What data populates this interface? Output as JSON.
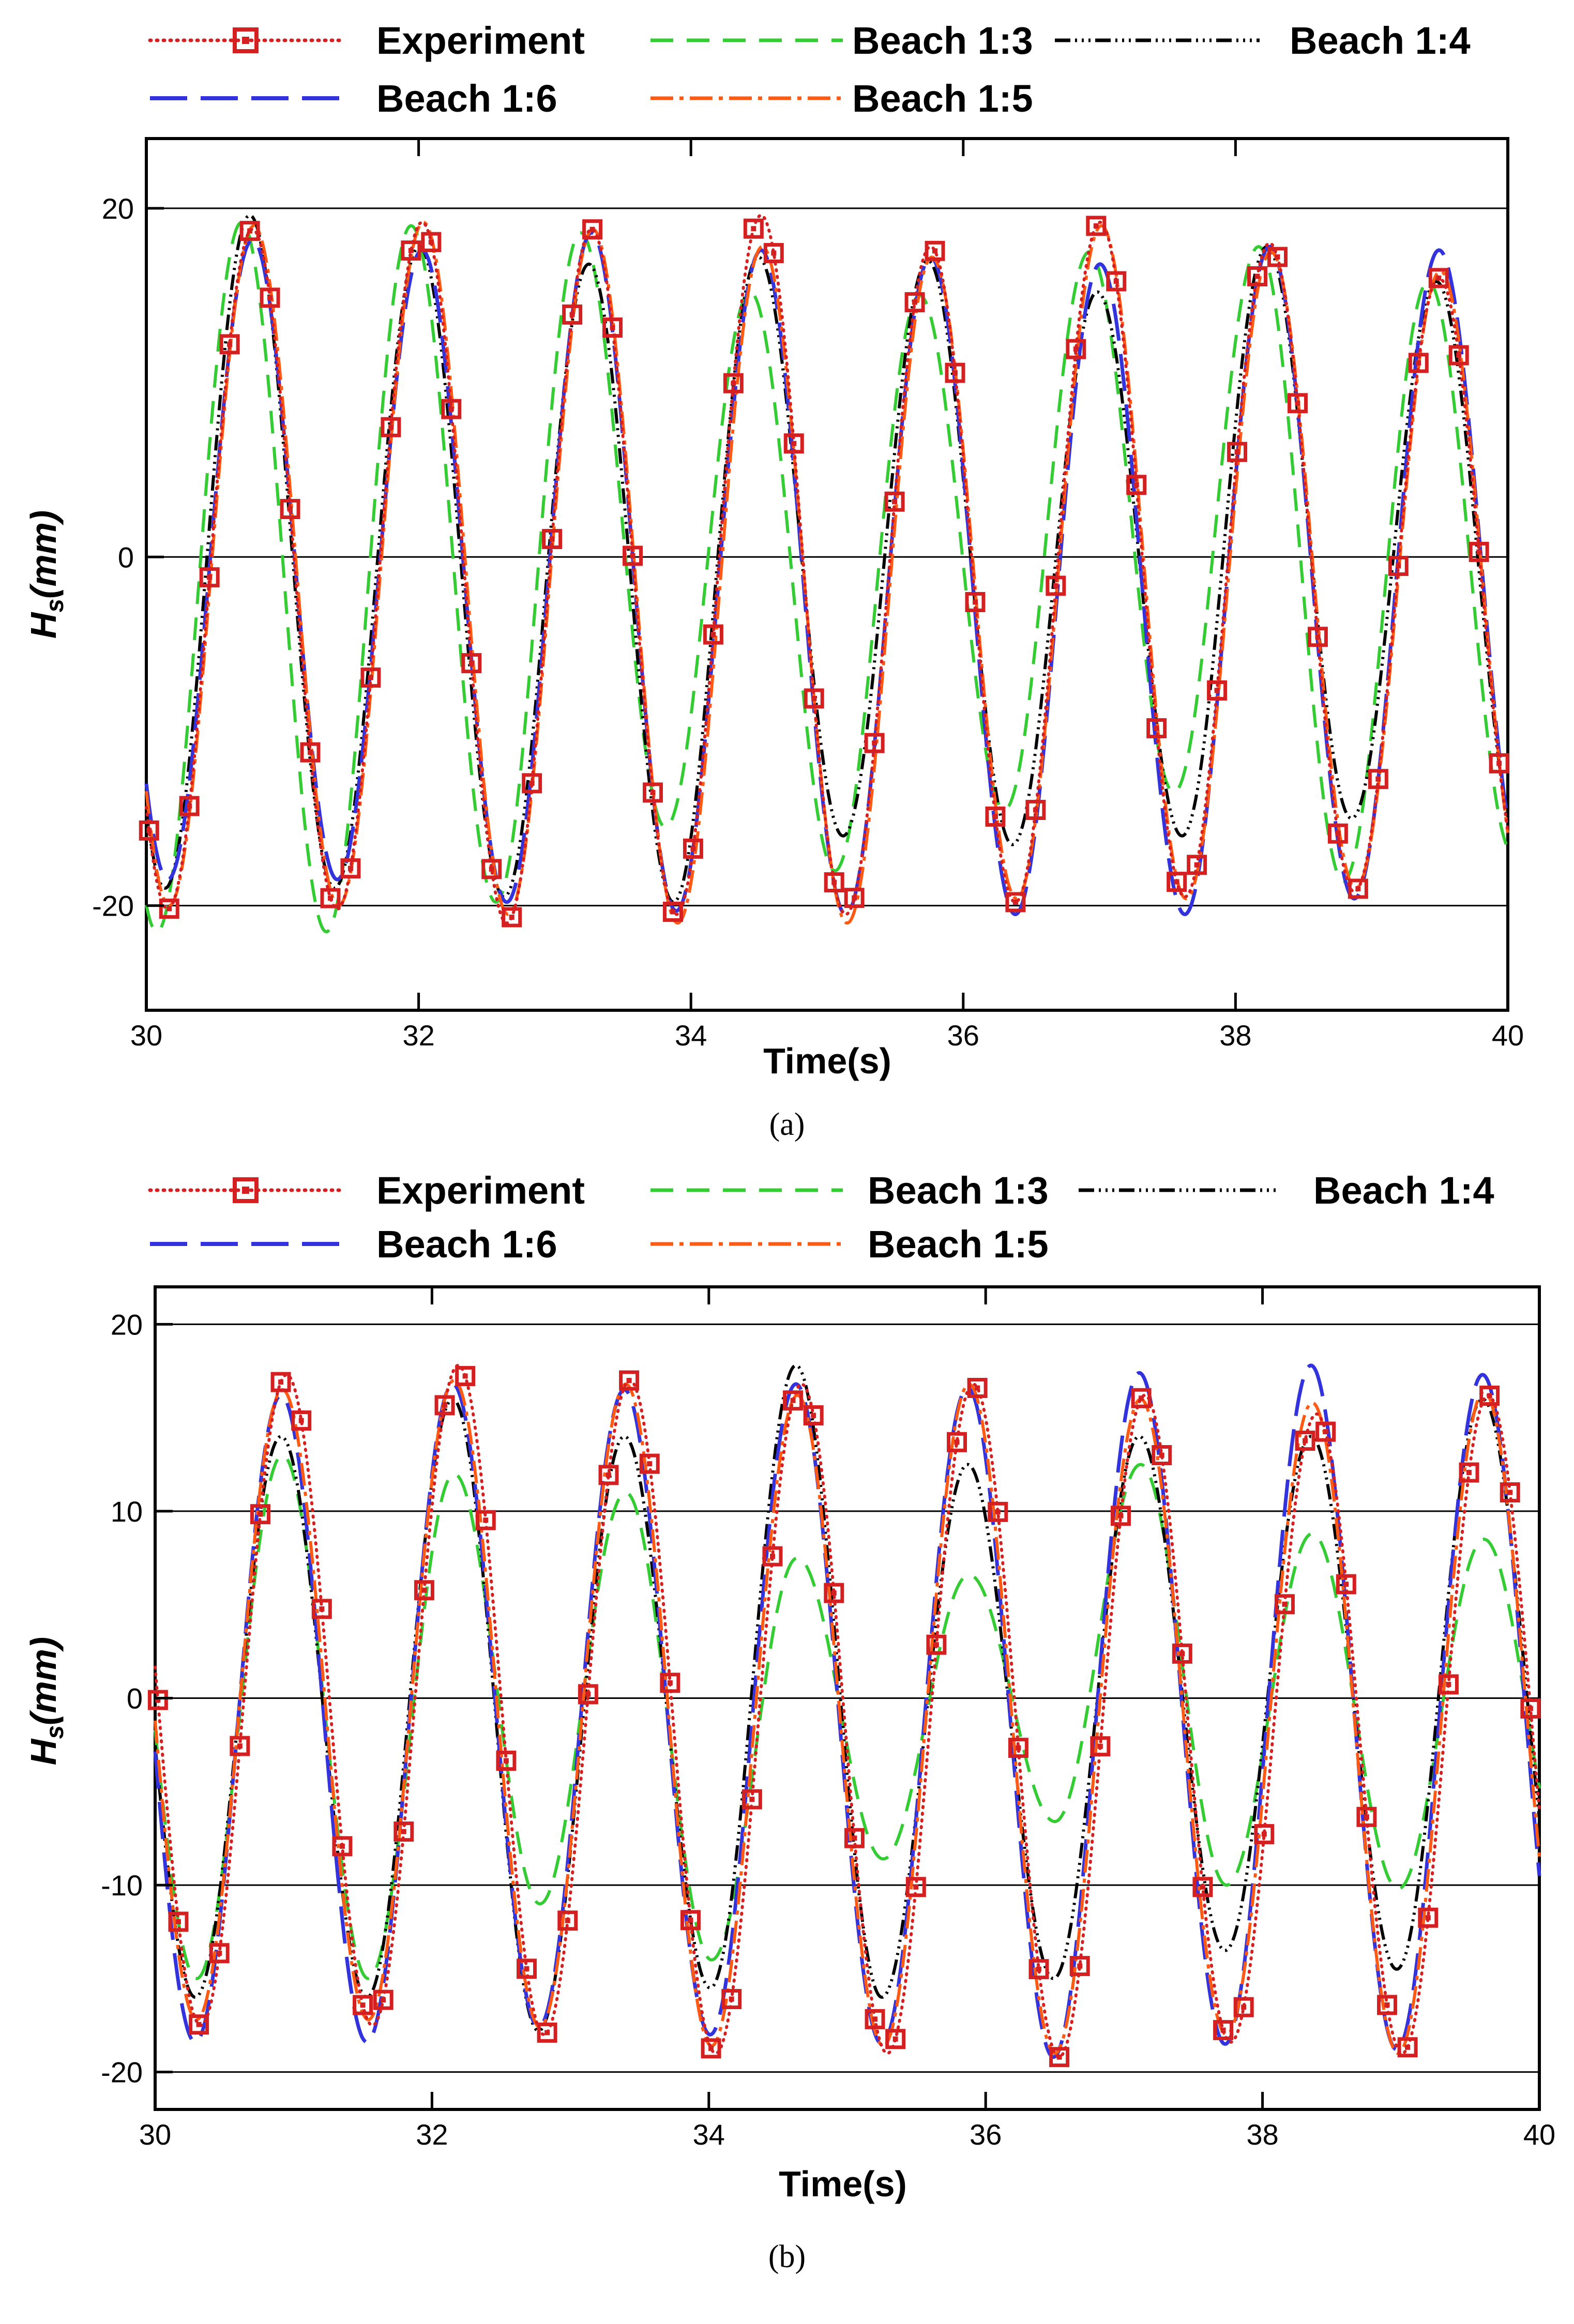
{
  "chart_data": [
    {
      "type": "line",
      "caption": "(a)",
      "xlabel": "Time(s)",
      "ylabel_main": "H",
      "ylabel_sub": "s",
      "ylabel_unit": "(mm)",
      "xlim": [
        30,
        40
      ],
      "ylim": [
        -26,
        24
      ],
      "xticks": [
        30,
        32,
        34,
        36,
        38,
        40
      ],
      "yticks": [
        -20,
        0,
        20
      ],
      "gridlines_y": [
        -20,
        0,
        20
      ],
      "period": 1.245,
      "series": [
        {
          "key": "exp",
          "name": "Experiment",
          "color": "#d42020",
          "t0": 30.78,
          "peaks": [
            18.8,
            19.2,
            18.8,
            19.6,
            17.8,
            19.2,
            18.0,
            16.0
          ],
          "troughs": [
            -20.2,
            -21.0,
            -20.5,
            -20.5,
            -19.8,
            -19.5,
            -19.2,
            -18.6
          ]
        },
        {
          "key": "b3",
          "name": "Beach 1:3",
          "color": "#33cc33",
          "t0": 30.7,
          "peaks": [
            19.2,
            19.0,
            18.6,
            15.2,
            15.0,
            17.5,
            17.8,
            15.8
          ],
          "troughs": [
            -21.5,
            -19.8,
            -15.5,
            -18.0,
            -14.5,
            -13.5,
            -18.6,
            -17.0
          ]
        },
        {
          "key": "b4",
          "name": "Beach 1:4",
          "color": "#000000",
          "t0": 30.76,
          "peaks": [
            19.6,
            17.8,
            16.8,
            17.2,
            17.0,
            15.2,
            17.8,
            15.8
          ],
          "troughs": [
            -19.0,
            -19.5,
            -19.8,
            -16.0,
            -16.5,
            -16.0,
            -15.0,
            -17.0
          ]
        },
        {
          "key": "b6",
          "name": "Beach 1:6",
          "color": "#3333dd",
          "t0": 30.78,
          "peaks": [
            18.2,
            17.6,
            18.6,
            17.6,
            17.2,
            16.8,
            17.8,
            17.6
          ],
          "troughs": [
            -18.5,
            -19.8,
            -20.3,
            -20.5,
            -20.5,
            -20.5,
            -19.6,
            -18.2
          ]
        },
        {
          "key": "b5",
          "name": "Beach 1:5",
          "color": "#ff5a14",
          "t0": 30.79,
          "peaks": [
            19.0,
            19.2,
            18.8,
            17.8,
            17.2,
            19.0,
            17.5,
            16.4
          ],
          "troughs": [
            -20.0,
            -20.5,
            -21.0,
            -21.0,
            -19.6,
            -19.6,
            -19.0,
            -19.4
          ]
        }
      ]
    },
    {
      "type": "line",
      "caption": "(b)",
      "xlabel": "Time(s)",
      "ylabel_main": "H",
      "ylabel_sub": "s",
      "ylabel_unit": "(mm)",
      "xlim": [
        30,
        40
      ],
      "ylim": [
        -22,
        22
      ],
      "xticks": [
        30,
        32,
        34,
        36,
        38,
        40
      ],
      "yticks": [
        -20,
        -10,
        0,
        10,
        20
      ],
      "gridlines_y": [
        -20,
        -10,
        0,
        10,
        20
      ],
      "period": 1.24,
      "series": [
        {
          "key": "exp",
          "name": "Experiment",
          "color": "#d42020",
          "t0": 30.95,
          "peaks": [
            17.3,
            17.8,
            17.0,
            16.8,
            16.8,
            16.2,
            15.2,
            16.2
          ],
          "troughs": [
            -17.5,
            -18.0,
            -19.0,
            -19.0,
            -19.2,
            -18.4,
            -19.0,
            -18.0
          ]
        },
        {
          "key": "b3",
          "name": "Beach 1:3",
          "color": "#33cc33",
          "t0": 30.92,
          "peaks": [
            13.0,
            12.0,
            11.0,
            7.5,
            6.6,
            12.5,
            8.8,
            8.5
          ],
          "troughs": [
            -15.0,
            -11.0,
            -14.0,
            -8.6,
            -6.6,
            -10.0,
            -10.2,
            -10.0
          ]
        },
        {
          "key": "b4",
          "name": "Beach 1:4",
          "color": "#000000",
          "t0": 30.91,
          "peaks": [
            14.0,
            16.0,
            14.0,
            17.8,
            12.5,
            14.0,
            14.0,
            16.0
          ],
          "troughs": [
            -16.0,
            -17.8,
            -15.5,
            -16.0,
            -15.0,
            -13.5,
            -14.5,
            -14.2
          ]
        },
        {
          "key": "b6",
          "name": "Beach 1:6",
          "color": "#3333dd",
          "t0": 30.91,
          "peaks": [
            16.2,
            16.8,
            16.5,
            16.8,
            16.6,
            17.4,
            17.8,
            17.3
          ],
          "troughs": [
            -18.4,
            -17.6,
            -18.0,
            -18.5,
            -19.2,
            -18.5,
            -18.8,
            -18.8
          ]
        },
        {
          "key": "b5",
          "name": "Beach 1:5",
          "color": "#ff5a14",
          "t0": 30.92,
          "peaks": [
            16.5,
            17.0,
            16.8,
            16.2,
            16.8,
            16.0,
            15.8,
            16.4
          ],
          "troughs": [
            -17.2,
            -17.6,
            -18.6,
            -18.6,
            -19.0,
            -18.0,
            -19.0,
            -18.2
          ]
        }
      ]
    }
  ]
}
